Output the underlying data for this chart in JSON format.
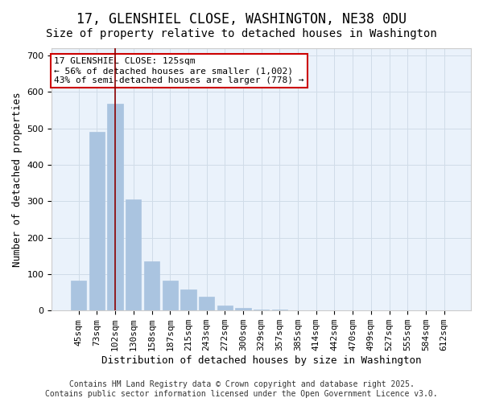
{
  "title": "17, GLENSHIEL CLOSE, WASHINGTON, NE38 0DU",
  "subtitle": "Size of property relative to detached houses in Washington",
  "xlabel": "Distribution of detached houses by size in Washington",
  "ylabel": "Number of detached properties",
  "categories": [
    "45sqm",
    "73sqm",
    "102sqm",
    "130sqm",
    "158sqm",
    "187sqm",
    "215sqm",
    "243sqm",
    "272sqm",
    "300sqm",
    "329sqm",
    "357sqm",
    "385sqm",
    "414sqm",
    "442sqm",
    "470sqm",
    "499sqm",
    "527sqm",
    "555sqm",
    "584sqm",
    "612sqm"
  ],
  "values": [
    83,
    490,
    567,
    305,
    135,
    83,
    58,
    38,
    14,
    8,
    3,
    2,
    1,
    0,
    0,
    0,
    0,
    0,
    0,
    0,
    0
  ],
  "bar_color": "#aac4e0",
  "bar_edge_color": "#aac4e0",
  "highlight_bar_index": 2,
  "highlight_line_color": "#8b0000",
  "annotation_box_text": "17 GLENSHIEL CLOSE: 125sqm\n← 56% of detached houses are smaller (1,002)\n43% of semi-detached houses are larger (778) →",
  "annotation_box_edge_color": "#cc0000",
  "annotation_box_bg_color": "#ffffff",
  "ylim": [
    0,
    720
  ],
  "yticks": [
    0,
    100,
    200,
    300,
    400,
    500,
    600,
    700
  ],
  "footer_line1": "Contains HM Land Registry data © Crown copyright and database right 2025.",
  "footer_line2": "Contains public sector information licensed under the Open Government Licence v3.0.",
  "grid_color": "#d0dce8",
  "plot_bg_color": "#eaf2fb",
  "title_fontsize": 12,
  "subtitle_fontsize": 10,
  "xlabel_fontsize": 9,
  "ylabel_fontsize": 9,
  "tick_fontsize": 8,
  "annotation_fontsize": 8,
  "footer_fontsize": 7
}
